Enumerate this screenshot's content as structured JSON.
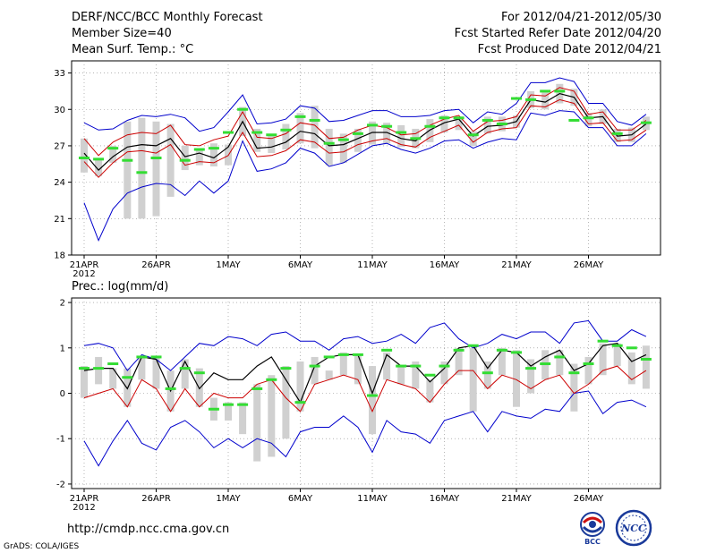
{
  "header": {
    "title": "DERF/NCC/BCC Monthly Forecast",
    "member_size": "Member Size=40",
    "variable": "Mean Surf. Temp.: °C",
    "forecast_period": "For 2012/04/21-2012/05/30",
    "started_date": "Fcst Started Refer Date 2012/04/20",
    "produced_date": "Fcst Produced Date 2012/04/21"
  },
  "panel2_label": "Prec.: log(mm/d)",
  "footer": {
    "url": "http://cmdp.ncc.cma.gov.cn",
    "credit": "GrADS: COLA/IGES",
    "logo_left": "BCC",
    "logo_right": "NCC"
  },
  "colors": {
    "max": "#0000cc",
    "min": "#0000cc",
    "mean": "#000000",
    "spread": "#cc0000",
    "box": "#d0d0d0",
    "obs": "#33dd33"
  },
  "chart_data": [
    {
      "type": "line",
      "title": "Mean Surf. Temp.: °C",
      "x_ticks": [
        "21APR",
        "26APR",
        "1MAY",
        "6MAY",
        "11MAY",
        "16MAY",
        "21MAY",
        "26MAY"
      ],
      "x_tick_days": [
        0,
        5,
        10,
        15,
        20,
        25,
        30,
        35
      ],
      "x_year_label": "2012",
      "ylim": [
        18,
        34
      ],
      "y_ticks": [
        18,
        21,
        24,
        27,
        30,
        33
      ],
      "n_days": 40,
      "series": [
        {
          "name": "max",
          "values": [
            28.9,
            28.3,
            28.4,
            29.1,
            29.5,
            29.4,
            29.6,
            29.3,
            28.2,
            28.5,
            29.8,
            31.2,
            28.8,
            28.9,
            29.2,
            30.3,
            30.1,
            29.0,
            29.1,
            29.5,
            29.9,
            29.9,
            29.4,
            29.4,
            29.5,
            29.9,
            30.0,
            28.9,
            29.8,
            29.6,
            30.5,
            32.2,
            32.2,
            32.6,
            32.3,
            30.5,
            30.5,
            29.0,
            28.7,
            29.6
          ]
        },
        {
          "name": "spread_upper",
          "values": [
            27.6,
            26.2,
            27.3,
            27.9,
            28.1,
            28.0,
            28.7,
            27.1,
            27.0,
            27.5,
            27.8,
            29.8,
            27.7,
            27.6,
            28.0,
            28.9,
            28.7,
            27.6,
            27.7,
            28.3,
            28.7,
            28.5,
            27.9,
            28.0,
            28.7,
            29.2,
            29.5,
            28.2,
            29.0,
            29.1,
            29.4,
            31.2,
            31.1,
            31.8,
            31.5,
            29.6,
            29.8,
            28.3,
            28.3,
            29.1
          ]
        },
        {
          "name": "mean",
          "values": [
            26.4,
            25.0,
            26.1,
            26.9,
            27.1,
            27.0,
            27.6,
            26.1,
            26.4,
            26.0,
            26.9,
            29.0,
            26.8,
            26.9,
            27.3,
            28.2,
            28.0,
            27.0,
            27.1,
            27.6,
            28.1,
            28.1,
            27.6,
            27.4,
            28.3,
            28.9,
            29.2,
            27.8,
            28.6,
            28.7,
            29.0,
            30.8,
            30.6,
            31.3,
            31.0,
            29.3,
            29.4,
            27.8,
            27.9,
            28.8
          ]
        },
        {
          "name": "spread_lower",
          "values": [
            25.7,
            24.4,
            25.6,
            26.5,
            26.6,
            26.4,
            27.1,
            25.4,
            25.7,
            25.6,
            26.2,
            28.1,
            26.1,
            26.2,
            26.6,
            27.5,
            27.3,
            26.4,
            26.5,
            27.1,
            27.4,
            27.6,
            27.1,
            26.9,
            27.7,
            28.2,
            28.7,
            27.3,
            28.1,
            28.4,
            28.5,
            30.3,
            30.2,
            30.8,
            30.5,
            28.8,
            28.9,
            27.4,
            27.5,
            28.3
          ]
        },
        {
          "name": "min",
          "values": [
            22.3,
            19.2,
            21.8,
            23.1,
            23.6,
            23.9,
            23.8,
            22.9,
            24.1,
            23.1,
            24.1,
            27.4,
            24.9,
            25.1,
            25.6,
            26.8,
            26.4,
            25.3,
            25.6,
            26.3,
            27.0,
            27.2,
            26.7,
            26.4,
            26.8,
            27.4,
            27.5,
            26.8,
            27.3,
            27.6,
            27.5,
            29.7,
            29.5,
            29.9,
            29.8,
            28.5,
            28.5,
            27.0,
            27.0,
            28.0
          ]
        },
        {
          "name": "box_top",
          "values": [
            27.6,
            26.0,
            27.0,
            29.0,
            29.3,
            29.0,
            28.8,
            27.0,
            26.6,
            27.2,
            27.1,
            30.2,
            28.4,
            27.8,
            28.8,
            29.7,
            30.3,
            28.4,
            28.0,
            28.4,
            29.0,
            28.9,
            28.7,
            28.4,
            29.2,
            29.5,
            29.3,
            28.2,
            29.4,
            29.4,
            29.5,
            31.5,
            31.4,
            32.1,
            31.7,
            29.7,
            30.0,
            28.4,
            28.5,
            29.4
          ]
        },
        {
          "name": "box_bottom",
          "values": [
            24.8,
            24.5,
            25.6,
            21.0,
            21.0,
            21.2,
            22.8,
            25.0,
            25.4,
            25.3,
            25.4,
            27.8,
            26.5,
            26.4,
            26.7,
            27.2,
            26.8,
            25.4,
            25.6,
            26.5,
            27.1,
            27.2,
            26.9,
            26.8,
            27.3,
            28.1,
            28.3,
            27.0,
            28.0,
            28.2,
            28.5,
            30.1,
            30.0,
            30.5,
            30.3,
            28.6,
            28.8,
            27.3,
            27.3,
            28.3
          ]
        },
        {
          "name": "observed",
          "values": [
            26.0,
            25.9,
            26.8,
            25.8,
            24.8,
            26.0,
            null,
            25.8,
            26.7,
            26.8,
            28.1,
            30.0,
            28.1,
            27.9,
            28.3,
            29.4,
            29.1,
            27.2,
            27.5,
            28.0,
            28.7,
            28.6,
            28.1,
            27.6,
            28.6,
            29.3,
            29.3,
            27.9,
            29.1,
            28.8,
            30.9,
            30.8,
            31.5,
            31.5,
            29.1,
            29.3,
            null,
            28.0,
            null,
            28.9
          ]
        }
      ]
    },
    {
      "type": "line",
      "title": "Prec.: log(mm/d)",
      "x_ticks": [
        "21APR",
        "26APR",
        "1MAY",
        "6MAY",
        "11MAY",
        "16MAY",
        "21MAY",
        "26MAY"
      ],
      "x_tick_days": [
        0,
        5,
        10,
        15,
        20,
        25,
        30,
        35
      ],
      "x_year_label": "2012",
      "ylim": [
        -2.1,
        2.1
      ],
      "y_ticks": [
        -2,
        -1,
        0,
        1,
        2
      ],
      "n_days": 40,
      "series": [
        {
          "name": "max",
          "values": [
            1.05,
            1.1,
            1.0,
            0.5,
            0.85,
            0.75,
            0.5,
            0.8,
            1.1,
            1.05,
            1.25,
            1.2,
            1.05,
            1.3,
            1.35,
            1.15,
            1.15,
            0.95,
            1.2,
            1.25,
            1.1,
            1.15,
            1.3,
            1.1,
            1.45,
            1.55,
            1.2,
            1.0,
            1.1,
            1.3,
            1.2,
            1.35,
            1.35,
            1.1,
            1.55,
            1.6,
            1.15,
            1.15,
            1.4,
            1.25
          ]
        },
        {
          "name": "mean",
          "values": [
            0.5,
            0.55,
            0.55,
            0.1,
            0.8,
            0.75,
            0.05,
            0.7,
            0.1,
            0.45,
            0.3,
            0.3,
            0.6,
            0.8,
            0.3,
            -0.2,
            0.6,
            0.8,
            0.85,
            0.85,
            0.0,
            0.85,
            0.6,
            0.6,
            0.25,
            0.55,
            1.0,
            1.05,
            0.55,
            0.95,
            0.9,
            0.6,
            0.8,
            0.95,
            0.5,
            0.65,
            1.05,
            1.1,
            0.7,
            0.85
          ]
        },
        {
          "name": "spread",
          "values": [
            -0.1,
            0.0,
            0.1,
            -0.3,
            0.3,
            0.1,
            -0.4,
            0.1,
            -0.3,
            0.0,
            -0.1,
            -0.1,
            0.2,
            0.3,
            -0.1,
            -0.4,
            0.2,
            0.3,
            0.4,
            0.3,
            -0.4,
            0.3,
            0.2,
            0.1,
            -0.2,
            0.2,
            0.5,
            0.5,
            0.1,
            0.4,
            0.3,
            0.1,
            0.3,
            0.4,
            0.0,
            0.2,
            0.5,
            0.6,
            0.3,
            0.5
          ]
        },
        {
          "name": "min",
          "values": [
            -1.05,
            -1.6,
            -1.05,
            -0.6,
            -1.1,
            -1.25,
            -0.75,
            -0.6,
            -0.85,
            -1.2,
            -1.0,
            -1.2,
            -1.0,
            -1.1,
            -1.4,
            -0.85,
            -0.75,
            -0.75,
            -0.5,
            -0.75,
            -1.3,
            -0.6,
            -0.85,
            -0.9,
            -1.1,
            -0.6,
            -0.5,
            -0.4,
            -0.85,
            -0.4,
            -0.5,
            -0.55,
            -0.35,
            -0.4,
            0.0,
            0.05,
            -0.45,
            -0.2,
            -0.15,
            -0.3
          ]
        },
        {
          "name": "box_top",
          "values": [
            0.6,
            0.8,
            0.55,
            0.55,
            0.8,
            0.8,
            0.5,
            0.75,
            0.55,
            -0.1,
            -0.2,
            -0.2,
            0.2,
            0.4,
            0.6,
            0.7,
            0.8,
            0.5,
            0.9,
            0.85,
            0.6,
            0.9,
            0.6,
            0.7,
            0.3,
            0.7,
            1.0,
            1.0,
            0.7,
            1.0,
            0.95,
            0.75,
            0.95,
            0.95,
            0.65,
            0.8,
            1.1,
            1.1,
            0.9,
            1.05
          ]
        },
        {
          "name": "box_bottom",
          "values": [
            -0.1,
            0.2,
            0.1,
            -0.3,
            0.3,
            0.1,
            -0.4,
            0.1,
            -0.3,
            -0.6,
            -0.6,
            -0.9,
            -1.5,
            -1.4,
            -1.0,
            -0.4,
            0.2,
            0.3,
            0.4,
            0.2,
            -0.9,
            0.3,
            0.2,
            0.1,
            -0.2,
            0.2,
            0.4,
            -0.4,
            0.1,
            0.4,
            -0.3,
            0.0,
            0.3,
            0.4,
            -0.4,
            0.2,
            0.4,
            0.6,
            0.2,
            0.1
          ]
        },
        {
          "name": "observed",
          "values": [
            0.55,
            0.55,
            0.65,
            0.35,
            0.8,
            0.8,
            0.1,
            0.55,
            0.45,
            -0.35,
            -0.25,
            -0.25,
            0.1,
            0.3,
            0.55,
            -0.2,
            0.6,
            0.8,
            0.85,
            0.85,
            -0.05,
            0.95,
            0.6,
            0.6,
            0.4,
            0.6,
            0.95,
            1.05,
            0.45,
            0.95,
            0.9,
            0.55,
            0.65,
            0.8,
            0.45,
            0.65,
            1.15,
            1.05,
            1.0,
            0.75
          ]
        }
      ]
    }
  ]
}
